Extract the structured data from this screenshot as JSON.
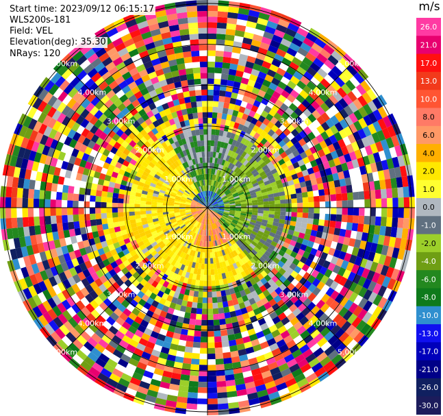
{
  "header": {
    "start_time": "Start time: 2023/09/12 06:15:17",
    "instrument": "WLS200s-181",
    "field": "Field: VEL",
    "elevation": "Elevation(deg): 35.30",
    "nrays": "NRays: 120"
  },
  "chart_data": {
    "type": "heatmap",
    "subtype": "polar-ppi",
    "field": "VEL",
    "units": "m/s",
    "range_rings_km": [
      "1.00km",
      "2.00km",
      "3.00km",
      "4.00km",
      "5.00km"
    ],
    "colorbar_labels": [
      "26.0",
      "21.0",
      "17.0",
      "13.0",
      "10.0",
      "8.0",
      "6.0",
      "4.0",
      "2.0",
      "1.0",
      "0.0",
      "-1.0",
      "-2.0",
      "-4.0",
      "-6.0",
      "-8.0",
      "-10.0",
      "-13.0",
      "-17.0",
      "-21.0",
      "-26.0",
      "-30.0"
    ],
    "colorbar_colors": [
      "#ff3aa3",
      "#e8006f",
      "#ff1010",
      "#f23a1b",
      "#ff5533",
      "#ff7a66",
      "#ff9966",
      "#ffb000",
      "#ffe800",
      "#ffff30",
      "#b0b8c0",
      "#607080",
      "#9ccf2a",
      "#6f9e14",
      "#23881f",
      "#0e7a1b",
      "#2f8fcf",
      "#1010f0",
      "#0000bb",
      "#000088",
      "#102060",
      "#1c1c5c"
    ],
    "n_rays": 120,
    "inner_pattern": "near-field yellow/orange positive velocities west & southwest, green/gray negative velocities east & north, noisy random colors beyond ~2.2 km"
  }
}
